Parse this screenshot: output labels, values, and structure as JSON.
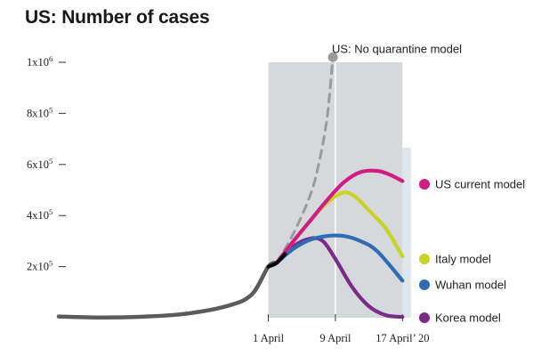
{
  "chart_data": {
    "type": "line",
    "title": "US: Number of cases",
    "y_ticks": [
      {
        "base": "2x10",
        "exp": "5",
        "value": 200000
      },
      {
        "base": "4x10",
        "exp": "5",
        "value": 400000
      },
      {
        "base": "6x10",
        "exp": "5",
        "value": 600000
      },
      {
        "base": "8x10",
        "exp": "5",
        "value": 800000
      },
      {
        "base": "1x10",
        "exp": "6",
        "value": 1000000
      }
    ],
    "x_ticks": [
      {
        "label": "1 April",
        "day": 0
      },
      {
        "label": "9 April",
        "day": 8
      },
      {
        "label": "17 April’ 20",
        "day": 16
      }
    ],
    "ylim": [
      0,
      1000000
    ],
    "xlim": [
      -25,
      20
    ],
    "grid": false,
    "shaded_regions": [
      {
        "from_day": 0,
        "to_day": 16,
        "color": "#d6d9dc"
      },
      {
        "from_day": 16,
        "to_day": 17,
        "color": "#dde6ec"
      }
    ],
    "series": [
      {
        "id": "history",
        "color": "#5b5b5b",
        "style": "solid",
        "points": [
          [
            -25,
            5000
          ],
          [
            -20,
            1000
          ],
          [
            -15,
            4000
          ],
          [
            -10,
            15000
          ],
          [
            -5,
            45000
          ],
          [
            -2,
            90000
          ],
          [
            0,
            200000
          ],
          [
            1,
            215000
          ]
        ]
      },
      {
        "id": "no-quarantine",
        "name": "US: No quarantine model",
        "color": "#9a9a9a",
        "style": "dashed",
        "points": [
          [
            1,
            215000
          ],
          [
            3,
            330000
          ],
          [
            5,
            480000
          ],
          [
            6,
            600000
          ],
          [
            7,
            780000
          ],
          [
            7.7,
            1020000
          ]
        ]
      },
      {
        "id": "us-current",
        "name": "US current model",
        "color": "#d01c85",
        "style": "solid",
        "points": [
          [
            1,
            215000
          ],
          [
            3,
            300000
          ],
          [
            5,
            380000
          ],
          [
            7,
            460000
          ],
          [
            9,
            530000
          ],
          [
            11,
            570000
          ],
          [
            13,
            575000
          ],
          [
            14.5,
            560000
          ],
          [
            16,
            535000
          ]
        ]
      },
      {
        "id": "italy",
        "name": "Italy model",
        "color": "#c7d426",
        "style": "solid",
        "points": [
          [
            1,
            215000
          ],
          [
            3,
            300000
          ],
          [
            5,
            380000
          ],
          [
            7,
            450000
          ],
          [
            9,
            490000
          ],
          [
            10.5,
            470000
          ],
          [
            12,
            420000
          ],
          [
            14,
            350000
          ],
          [
            16,
            240000
          ]
        ]
      },
      {
        "id": "wuhan",
        "name": "Wuhan model",
        "color": "#2e6db5",
        "style": "solid",
        "points": [
          [
            1,
            215000
          ],
          [
            3,
            270000
          ],
          [
            5,
            305000
          ],
          [
            7,
            320000
          ],
          [
            9,
            320000
          ],
          [
            11,
            300000
          ],
          [
            13,
            260000
          ],
          [
            16,
            145000
          ]
        ]
      },
      {
        "id": "korea",
        "name": "Korea model",
        "color": "#7b2c86",
        "style": "solid",
        "points": [
          [
            1,
            215000
          ],
          [
            3,
            280000
          ],
          [
            5,
            310000
          ],
          [
            6.5,
            300000
          ],
          [
            8,
            230000
          ],
          [
            10,
            120000
          ],
          [
            12,
            45000
          ],
          [
            14,
            10000
          ],
          [
            16,
            3000
          ]
        ]
      },
      {
        "id": "transition",
        "color": "#0a0a0a",
        "style": "solid",
        "points": [
          [
            0,
            200000
          ],
          [
            1,
            215000
          ],
          [
            2,
            250000
          ]
        ]
      }
    ],
    "legend": [
      {
        "label": "US current model",
        "color": "#d01c85",
        "series": "us-current"
      },
      {
        "label": "Italy model",
        "color": "#c7d426",
        "series": "italy"
      },
      {
        "label": "Wuhan model",
        "color": "#2e6db5",
        "series": "wuhan"
      },
      {
        "label": "Korea model",
        "color": "#7b2c86",
        "series": "korea"
      },
      {
        "label": "US: No quarantine model",
        "color": "#9a9a9a",
        "series": "no-quarantine"
      }
    ]
  }
}
